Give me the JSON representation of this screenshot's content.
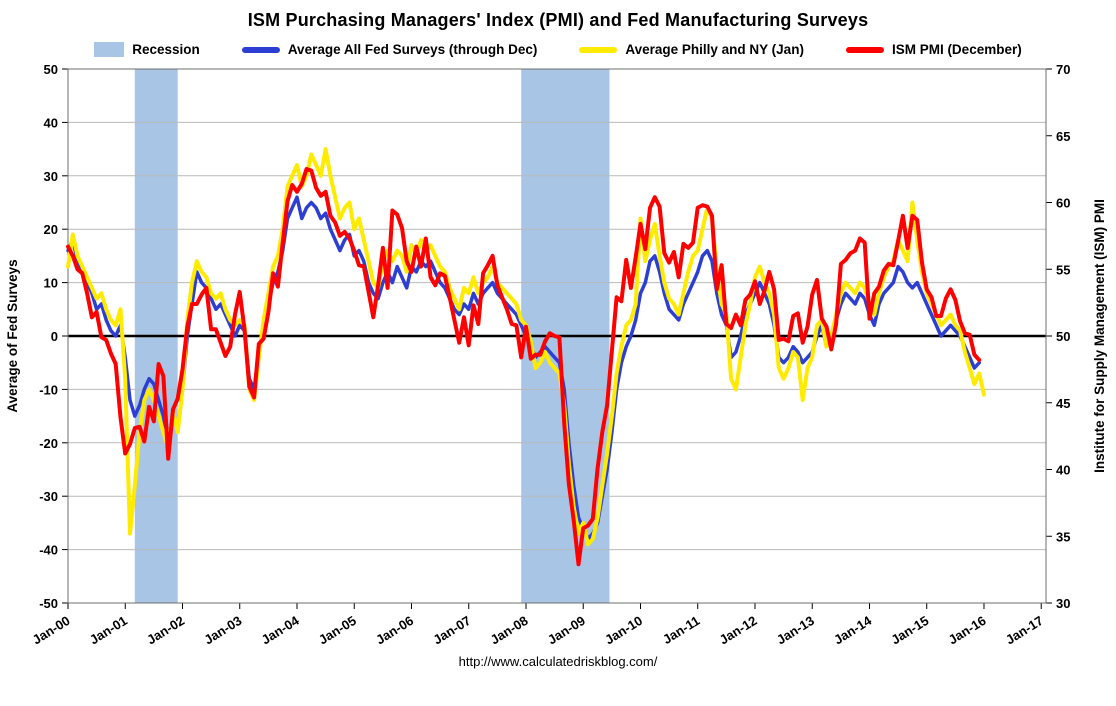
{
  "header": {
    "title": "ISM Purchasing Managers' Index (PMI) and Fed Manufacturing Surveys"
  },
  "legend": [
    {
      "label": "Recession",
      "type": "band",
      "color": "#a8c5e6"
    },
    {
      "label": "Average All Fed Surveys (through Dec)",
      "type": "line",
      "color": "#2d3fd3"
    },
    {
      "label": "Average Philly and NY (Jan)",
      "type": "line",
      "color": "#ffeb00"
    },
    {
      "label": "ISM PMI (December)",
      "type": "line",
      "color": "#ff0000"
    }
  ],
  "footer": {
    "url": "http://www.calculatedriskblog.com/"
  },
  "chart_data": {
    "type": "line",
    "title": "ISM Purchasing Managers' Index (PMI) and Fed Manufacturing Surveys",
    "left_axis": {
      "label": "Average of Fed Surveys",
      "min": -50,
      "max": 50,
      "tick_step": 10
    },
    "right_axis": {
      "label": "Institute for Supply Management (ISM) PMI",
      "min": 30,
      "max": 70,
      "tick_step": 5,
      "color": "#ff0000"
    },
    "x_tick_labels": [
      "Jan-00",
      "Jan-01",
      "Jan-02",
      "Jan-03",
      "Jan-04",
      "Jan-05",
      "Jan-06",
      "Jan-07",
      "Jan-08",
      "Jan-09",
      "Jan-10",
      "Jan-11",
      "Jan-12",
      "Jan-13",
      "Jan-14",
      "Jan-15",
      "Jan-16",
      "Jan-17"
    ],
    "months_per_tick": 12,
    "x_total_months": 205,
    "recession_color": "#a8c5e6",
    "gridline_color": "#b9b9b9",
    "recession_bands_months": [
      [
        14,
        23
      ],
      [
        95,
        113.5
      ]
    ],
    "series": [
      {
        "name": "Average All Fed Surveys (through Dec)",
        "axis": "left",
        "color": "#2d3fd3",
        "width": 3.5,
        "start_month": 0,
        "values": [
          16,
          18,
          14,
          12,
          10,
          8,
          5,
          6,
          3,
          1,
          0,
          2,
          -4,
          -12,
          -15,
          -13,
          -10,
          -8,
          -9,
          -12,
          -15,
          -20,
          -14,
          -18,
          -10,
          0,
          6,
          12,
          10,
          9,
          7,
          5,
          6,
          4,
          2,
          0,
          2,
          1,
          -8,
          -10,
          -3,
          2,
          6,
          10,
          12,
          16,
          22,
          24,
          26,
          22,
          24,
          25,
          24,
          22,
          23,
          20,
          18,
          16,
          18,
          19,
          15,
          16,
          14,
          10,
          8,
          7,
          10,
          12,
          10,
          13,
          11,
          9,
          13,
          12,
          14,
          13,
          14,
          12,
          10,
          9,
          7,
          5,
          4,
          6,
          5,
          8,
          6,
          8,
          9,
          10,
          8,
          7,
          6,
          5,
          4,
          2,
          0,
          -2,
          -4,
          -3,
          -2,
          -3,
          -4,
          -5,
          -10,
          -20,
          -28,
          -34,
          -36,
          -38,
          -37,
          -35,
          -30,
          -25,
          -18,
          -10,
          -5,
          -2,
          0,
          3,
          8,
          10,
          14,
          15,
          12,
          8,
          5,
          4,
          3,
          6,
          8,
          10,
          12,
          15,
          16,
          14,
          8,
          4,
          2,
          -4,
          -3,
          0,
          4,
          6,
          8,
          10,
          8,
          6,
          2,
          -4,
          -5,
          -4,
          -2,
          -3,
          -5,
          -4,
          -3,
          0,
          2,
          -2,
          0,
          3,
          6,
          8,
          7,
          6,
          8,
          7,
          4,
          2,
          6,
          8,
          9,
          10,
          13,
          12,
          10,
          9,
          10,
          8,
          6,
          4,
          2,
          0,
          1,
          2,
          1,
          0,
          -2,
          -4,
          -6,
          -5
        ]
      },
      {
        "name": "Average Philly and NY (Jan)",
        "axis": "left",
        "color": "#ffeb00",
        "width": 4,
        "start_month": 0,
        "values": [
          13,
          19,
          15,
          13,
          11,
          9,
          7,
          8,
          5,
          3,
          2,
          5,
          -8,
          -37,
          -28,
          -18,
          -12,
          -10,
          -12,
          -15,
          -18,
          -21,
          -14,
          -18,
          -10,
          3,
          10,
          14,
          12,
          11,
          8,
          7,
          8,
          5,
          3,
          2,
          3,
          2,
          -10,
          -12,
          -4,
          3,
          8,
          13,
          15,
          20,
          28,
          30,
          32,
          28,
          30,
          34,
          32,
          30,
          35,
          30,
          26,
          22,
          24,
          25,
          20,
          22,
          18,
          14,
          10,
          9,
          14,
          16,
          14,
          16,
          15,
          12,
          17,
          15,
          18,
          16,
          17,
          15,
          13,
          12,
          9,
          7,
          5,
          9,
          8,
          11,
          8,
          10,
          11,
          13,
          10,
          9,
          8,
          7,
          6,
          3,
          2,
          -1,
          -6,
          -5,
          -3,
          -5,
          -6,
          -7,
          -13,
          -24,
          -32,
          -37,
          -35,
          -39,
          -38,
          -34,
          -28,
          -22,
          -15,
          -7,
          -2,
          2,
          3,
          6,
          22,
          14,
          18,
          21,
          15,
          10,
          7,
          6,
          4,
          8,
          12,
          15,
          16,
          20,
          24,
          22,
          12,
          6,
          4,
          -8,
          -10,
          -4,
          2,
          6,
          11,
          13,
          10,
          8,
          4,
          -6,
          -8,
          -6,
          -3,
          -4,
          -12,
          -6,
          -4,
          2,
          3,
          -2,
          0,
          4,
          8,
          10,
          9,
          8,
          10,
          9,
          6,
          4,
          8,
          11,
          13,
          14,
          18,
          16,
          14,
          25,
          18,
          12,
          8,
          6,
          4,
          2,
          3,
          4,
          2,
          1,
          -3,
          -6,
          -9,
          -7,
          -11
        ]
      },
      {
        "name": "ISM PMI (December)",
        "axis": "right",
        "color": "#ff0000",
        "width": 4,
        "start_month": 0,
        "values": [
          56.7,
          56,
          55,
          54.7,
          53.2,
          51.4,
          51.8,
          49.9,
          49.7,
          48.7,
          47.9,
          43.9,
          41.2,
          41.9,
          43.1,
          43.2,
          42.1,
          44.7,
          43.6,
          47.9,
          47,
          40.8,
          44.5,
          45.3,
          47.5,
          50.7,
          52.4,
          52.4,
          53.1,
          53.6,
          50.5,
          50.5,
          49.5,
          48.5,
          49.2,
          51.6,
          53.3,
          50.5,
          46.2,
          45.4,
          49.4,
          49.8,
          51.8,
          54.7,
          53.7,
          57,
          60.1,
          61.3,
          60.8,
          61.4,
          62.5,
          62.4,
          61.1,
          60.5,
          60.8,
          59,
          58.5,
          57.5,
          57.8,
          57.3,
          56.4,
          55.3,
          55.2,
          53.3,
          51.4,
          53.8,
          56.6,
          53.6,
          59.4,
          59.1,
          58.1,
          55.6,
          54.8,
          56.7,
          55.2,
          57.3,
          54.4,
          53.8,
          54.7,
          54.5,
          52.9,
          51.2,
          49.5,
          51.4,
          49.3,
          52.3,
          50.9,
          54.7,
          55.3,
          56,
          53.8,
          52.9,
          52,
          50.9,
          50.8,
          48.4,
          50.7,
          48.3,
          48.6,
          48.6,
          49.6,
          50.2,
          50,
          49.9,
          43.5,
          38.9,
          36.2,
          32.9,
          35.6,
          35.8,
          36.3,
          40.1,
          42.8,
          44.8,
          48.9,
          52.9,
          52.6,
          55.7,
          53.6,
          55.9,
          58.4,
          56.5,
          59.6,
          60.4,
          59.7,
          56.2,
          55.5,
          56.3,
          54.4,
          56.9,
          56.6,
          57,
          59.6,
          59.8,
          59.7,
          59,
          53.5,
          55.3,
          50.9,
          50.6,
          51.6,
          50.8,
          52.7,
          53.1,
          54.1,
          52.4,
          53.4,
          54.8,
          53.5,
          49.7,
          49.8,
          49.6,
          51.5,
          51.7,
          49.5,
          50.7,
          53.1,
          54.2,
          51.3,
          50.7,
          49,
          50.9,
          55.4,
          55.7,
          56.2,
          56.4,
          57.3,
          57,
          51.3,
          53.2,
          53.7,
          54.9,
          55.4,
          55.3,
          57.1,
          59,
          56.6,
          59,
          58.7,
          55.5,
          53.5,
          52.9,
          51.5,
          51.5,
          52.8,
          53.5,
          52.7,
          51.1,
          50.2,
          50.1,
          48.6,
          48.2
        ]
      }
    ]
  }
}
